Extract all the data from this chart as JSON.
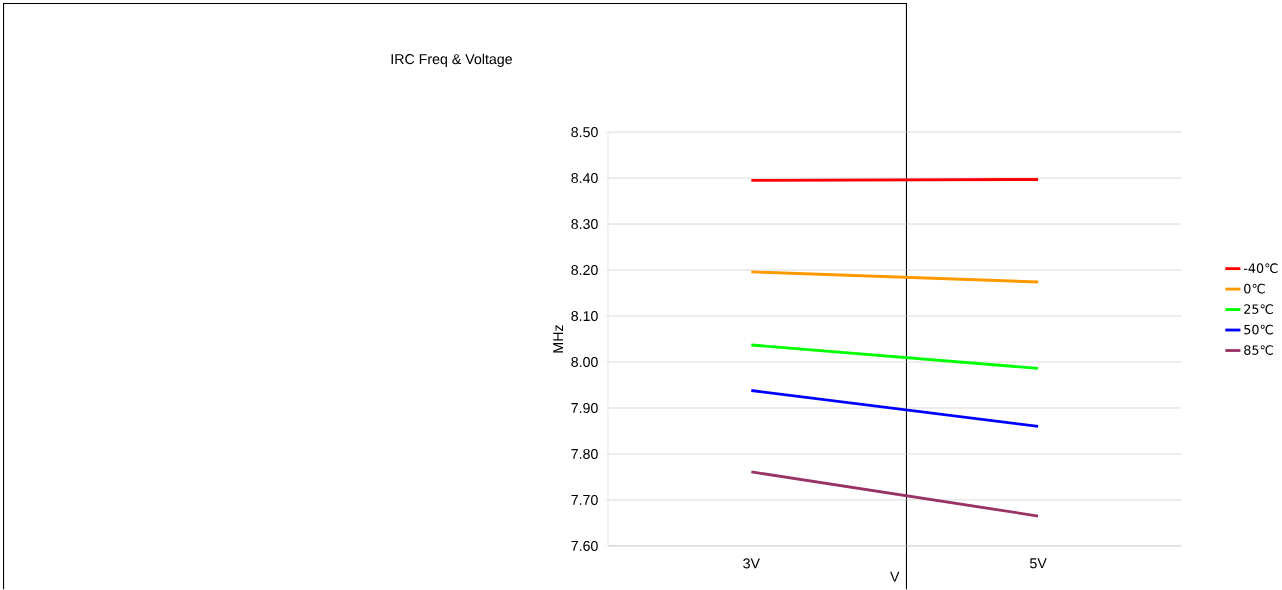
{
  "chart_data": {
    "type": "line",
    "title": "IRC Freq & Voltage",
    "xlabel": "V",
    "ylabel": "MHz",
    "categories": [
      "3V",
      "5V"
    ],
    "series": [
      {
        "name": "-40℃",
        "color": "#ff0000",
        "values": [
          8.395,
          8.397
        ]
      },
      {
        "name": "0℃",
        "color": "#ff9900",
        "values": [
          8.196,
          8.174
        ]
      },
      {
        "name": "25℃",
        "color": "#00ff00",
        "values": [
          8.037,
          7.986
        ]
      },
      {
        "name": "50℃",
        "color": "#0000ff",
        "values": [
          7.938,
          7.86
        ]
      },
      {
        "name": "85℃",
        "color": "#993366",
        "values": [
          7.761,
          7.665
        ]
      }
    ],
    "ylim": [
      7.6,
      8.5
    ],
    "yticks": [
      {
        "value": 7.6,
        "label": "7.60"
      },
      {
        "value": 7.7,
        "label": "7.70"
      },
      {
        "value": 7.8,
        "label": "7.80"
      },
      {
        "value": 7.9,
        "label": "7.90"
      },
      {
        "value": 8.0,
        "label": "8.00"
      },
      {
        "value": 8.1,
        "label": "8.10"
      },
      {
        "value": 8.2,
        "label": "8.20"
      },
      {
        "value": 8.3,
        "label": "8.30"
      },
      {
        "value": 8.4,
        "label": "8.40"
      },
      {
        "value": 8.5,
        "label": "8.50"
      }
    ],
    "grid": "y",
    "legend": "right",
    "marker": "none",
    "line_style": "solid"
  }
}
